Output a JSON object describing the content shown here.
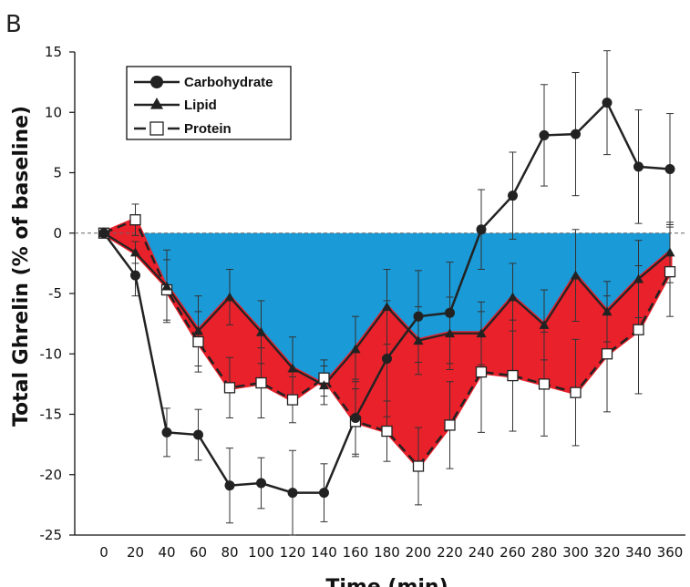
{
  "panel_label": "B",
  "chart_data": {
    "type": "line",
    "xlabel": "Time (min)",
    "ylabel": "Total Ghrelin (% of baseline)",
    "ylim": [
      -25,
      15
    ],
    "xlim": [
      0,
      360
    ],
    "x_ticks": [
      "0",
      "20",
      "40",
      "60",
      "80",
      "100",
      "120",
      "140",
      "160",
      "180",
      "200",
      "220",
      "240",
      "260",
      "280",
      "300",
      "320",
      "340",
      "360"
    ],
    "y_ticks": [
      "15",
      "10",
      "5",
      "0",
      "-5",
      "-10",
      "-15",
      "-20",
      "-25"
    ],
    "legend": {
      "placement": "top-left",
      "entries": [
        "Carbohydrate",
        "Lipid",
        "Protein"
      ]
    },
    "baseline": {
      "value": 0,
      "style": "dashed"
    },
    "x": [
      0,
      20,
      40,
      60,
      80,
      100,
      120,
      140,
      160,
      180,
      200,
      220,
      240,
      260,
      280,
      300,
      320,
      340,
      360
    ],
    "series": [
      {
        "name": "Carbohydrate",
        "marker": "circle",
        "line": "solid",
        "values": [
          0,
          -3.5,
          -16.5,
          -16.7,
          -20.9,
          -20.7,
          -21.5,
          -21.5,
          -15.3,
          -10.4,
          -6.9,
          -6.6,
          0.3,
          3.1,
          8.1,
          8.2,
          10.8,
          5.5,
          5.3
        ],
        "errors": [
          0,
          1.7,
          2,
          2.1,
          3.1,
          2.1,
          3.5,
          2.4,
          3.2,
          4.8,
          3.8,
          4.2,
          3.3,
          3.6,
          4.2,
          5.1,
          4.3,
          4.7,
          4.6
        ]
      },
      {
        "name": "Lipid",
        "marker": "triangle",
        "line": "solid",
        "values": [
          0,
          -1.6,
          -4.4,
          -8.1,
          -5.3,
          -8.2,
          -11.2,
          -12.6,
          -9.6,
          -6.1,
          -8.9,
          -8.3,
          -8.3,
          -5.3,
          -7.6,
          -3.5,
          -6.5,
          -3.8,
          -1.6
        ],
        "errors": [
          0,
          0.9,
          3,
          2.9,
          2.3,
          2.6,
          2.6,
          1.6,
          2.7,
          3.1,
          2.8,
          3,
          2.6,
          2.8,
          2.9,
          3.8,
          2.5,
          3.2,
          2.5
        ]
      },
      {
        "name": "Protein",
        "marker": "square",
        "line": "dashed",
        "values": [
          0,
          1.1,
          -4.7,
          -9,
          -12.8,
          -12.4,
          -13.8,
          -12,
          -15.6,
          -16.4,
          -19.3,
          -15.9,
          -11.5,
          -11.8,
          -12.5,
          -13.2,
          -10,
          -8,
          -3.2
        ],
        "errors": [
          0,
          1.3,
          2.5,
          2.5,
          2.5,
          2.9,
          1.9,
          1.5,
          2.7,
          2.5,
          3.2,
          3.6,
          5,
          4.6,
          4.3,
          4.4,
          4.8,
          5.3,
          3.7
        ]
      }
    ],
    "shaded_regions": [
      {
        "between": [
          "baseline",
          "Lipid"
        ],
        "color": "#1a9ad6"
      },
      {
        "between": [
          "Lipid",
          "Protein"
        ],
        "color": "#e8212b"
      }
    ],
    "colors": {
      "lines": "#222222",
      "blue_fill": "#1a9ad6",
      "red_fill": "#e8212b",
      "red_outline": "#ffffff"
    }
  }
}
